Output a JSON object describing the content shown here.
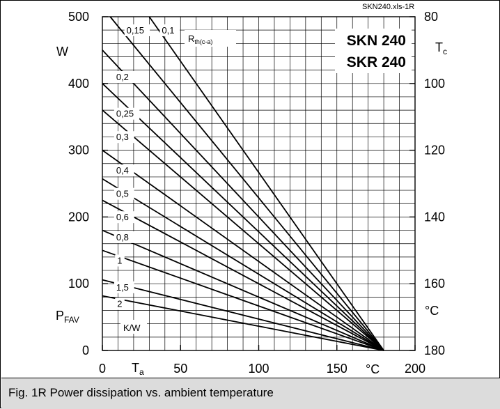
{
  "caption": "Fig. 1R Power dissipation vs. ambient temperature",
  "file_tag": "SKN240.xls-1R",
  "device_labels": [
    "SKN 240",
    "SKR 240"
  ],
  "chart_data": {
    "type": "line",
    "title": "",
    "x_axis": {
      "quantity": "T",
      "subscript": "a",
      "unit": "°C",
      "range": [
        0,
        200
      ],
      "ticks": [
        0,
        50,
        100,
        150,
        200
      ]
    },
    "y_axis_left": {
      "quantity": "P",
      "subscript": "FAV",
      "unit": "W",
      "range": [
        0,
        500
      ],
      "ticks": [
        0,
        100,
        200,
        300,
        400,
        500
      ]
    },
    "y_axis_right": {
      "quantity": "T",
      "subscript": "c",
      "unit": "°C",
      "range_top_to_bottom": [
        80,
        180
      ],
      "ticks": [
        80,
        100,
        120,
        140,
        160,
        180
      ]
    },
    "grid": true,
    "series_label": {
      "quantity": "R",
      "subscript": "th(c-a)",
      "unit": "K/W"
    },
    "series": [
      {
        "name": "0,1",
        "rth": 0.1,
        "label_pos": {
          "x": 0.188,
          "y": 0.95
        }
      },
      {
        "name": "0,15",
        "rth": 0.15,
        "label_pos": {
          "x": 0.075,
          "y": 0.95
        }
      },
      {
        "name": "0,2",
        "rth": 0.2,
        "label_pos": {
          "x": 0.042,
          "y": 0.81
        }
      },
      {
        "name": "0,25",
        "rth": 0.25,
        "label_pos": {
          "x": 0.042,
          "y": 0.7
        }
      },
      {
        "name": "0,3",
        "rth": 0.3,
        "label_pos": {
          "x": 0.042,
          "y": 0.63
        }
      },
      {
        "name": "0,4",
        "rth": 0.4,
        "label_pos": {
          "x": 0.042,
          "y": 0.53
        }
      },
      {
        "name": "0,5",
        "rth": 0.5,
        "label_pos": {
          "x": 0.042,
          "y": 0.46
        }
      },
      {
        "name": "0,6",
        "rth": 0.6,
        "label_pos": {
          "x": 0.042,
          "y": 0.39
        }
      },
      {
        "name": "0,8",
        "rth": 0.8,
        "label_pos": {
          "x": 0.042,
          "y": 0.33
        }
      },
      {
        "name": "1",
        "rth": 1.0,
        "label_pos": {
          "x": 0.045,
          "y": 0.26
        }
      },
      {
        "name": "1,5",
        "rth": 1.5,
        "label_pos": {
          "x": 0.042,
          "y": 0.18
        }
      },
      {
        "name": "2",
        "rth": 2.0,
        "label_pos": {
          "x": 0.045,
          "y": 0.13
        }
      }
    ],
    "convergence_point": {
      "x": 180,
      "y": 0
    },
    "relation": "P = (180 - Ta) / (Rth + 0.2)"
  }
}
